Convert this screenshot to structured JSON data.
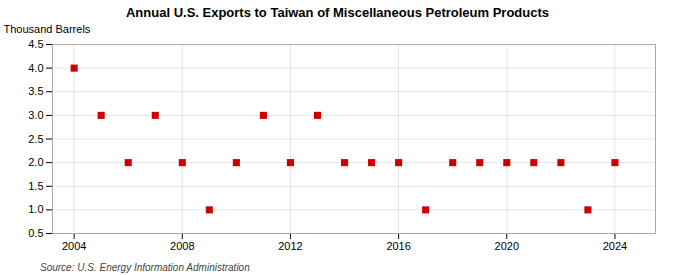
{
  "chart_data": {
    "type": "scatter",
    "title": "Annual U.S. Exports to Taiwan of Miscellaneous Petroleum Products",
    "ylabel": "Thousand Barrels",
    "source": "Source: U.S. Energy Information Administration",
    "x": [
      2004,
      2005,
      2006,
      2007,
      2008,
      2009,
      2010,
      2011,
      2012,
      2013,
      2014,
      2015,
      2016,
      2017,
      2018,
      2019,
      2020,
      2021,
      2022,
      2023,
      2024
    ],
    "values": [
      4,
      3,
      2,
      3,
      2,
      1,
      2,
      3,
      2,
      3,
      2,
      2,
      2,
      1,
      2,
      2,
      2,
      2,
      2,
      1,
      2
    ],
    "color": "#cc0000",
    "marker": "square",
    "xlim": [
      2003.2,
      2025.5
    ],
    "xticks": [
      2004,
      2008,
      2012,
      2016,
      2020,
      2024
    ],
    "ylim": [
      0.5,
      4.5
    ],
    "yticks": [
      0.5,
      {
        "value": 1,
        "label": "1.0"
      },
      1.5,
      {
        "value": 2,
        "label": "2.0"
      },
      2.5,
      {
        "value": 3,
        "label": "3.0"
      },
      3.5,
      {
        "value": 4,
        "label": "4.0"
      },
      4.5
    ],
    "grid": true
  }
}
